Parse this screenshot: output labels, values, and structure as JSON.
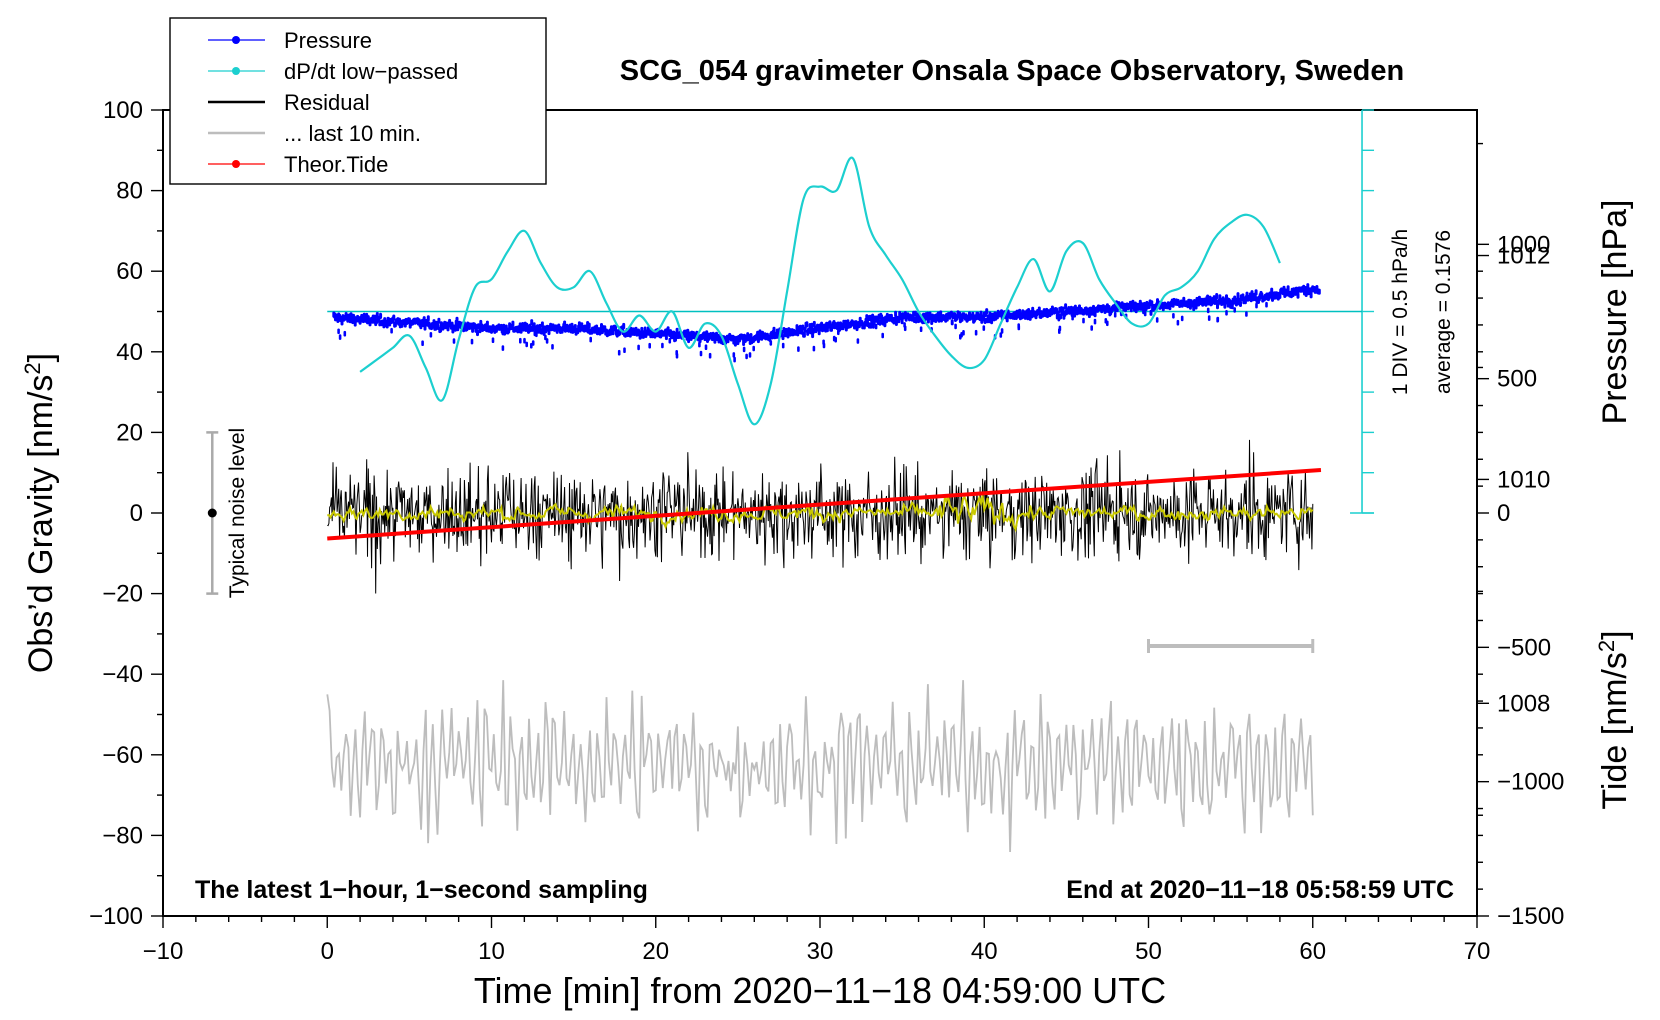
{
  "chart_data": {
    "type": "line",
    "title": "SCG_054 gravimeter Onsala Space Observatory, Sweden",
    "xlabel": "Time [min] from 2020−11−18 04:59:00 UTC",
    "ylabel_main": "Obs’d Gravity [nm/s",
    "ylabel_pressure": "Pressure [hPa]",
    "ylabel_tide": "Tide [nm/s",
    "superscript": "2",
    "xlim": [
      -10,
      70
    ],
    "ylim": [
      -100,
      100
    ],
    "pressure_lim": [
      1006.1,
      1013.3
    ],
    "tide_lim": [
      -1500,
      1500
    ],
    "x_ticks": [
      "−10",
      "0",
      "10",
      "20",
      "30",
      "40",
      "50",
      "60",
      "70"
    ],
    "y_ticks": [
      "100",
      "80",
      "60",
      "40",
      "20",
      "0",
      "−20",
      "−40",
      "−60",
      "−80",
      "−100"
    ],
    "pressure_ticks": [
      "1012",
      "1010",
      "1008"
    ],
    "tide_ticks": [
      "1000",
      "500",
      "0",
      "−500",
      "−1000",
      "−1500"
    ],
    "legend": {
      "position": "top-left",
      "entries": [
        "Pressure",
        "dP/dt low−passed",
        "Residual",
        "... last 10 min.",
        "Theor.Tide"
      ]
    },
    "annotations": {
      "left_bottom": "The latest 1−hour, 1−second sampling",
      "right_bottom": "End at 2020−11−18 05:58:59 UTC",
      "noise_label": "Typical noise level",
      "div_label": "1 DIV = 0.5 hPa/h",
      "avg_label": "average = 0.1576"
    },
    "noise_bar": {
      "x": -7,
      "y_center": 0,
      "y_half": 20
    },
    "ten_min_bar": {
      "x_start": 50,
      "x_end": 60,
      "y": -33
    },
    "dpdt_baseline": 50,
    "series": [
      {
        "name": "Pressure",
        "color": "#0000ff",
        "unit": "hPa",
        "x": [
          0,
          5,
          10,
          15,
          20,
          25,
          30,
          35,
          40,
          45,
          50,
          55,
          60
        ],
        "values": [
          1011.45,
          1011.4,
          1011.35,
          1011.35,
          1011.3,
          1011.25,
          1011.35,
          1011.45,
          1011.45,
          1011.5,
          1011.55,
          1011.6,
          1011.7
        ]
      },
      {
        "name": "dP/dt low-passed",
        "color": "#00c8c8",
        "unit": "nm/s2 axis",
        "x": [
          2,
          3,
          4,
          5,
          6,
          7,
          8,
          9,
          10,
          11,
          12,
          13,
          14,
          15,
          16,
          17,
          18,
          19,
          20,
          21,
          22,
          23,
          24,
          25,
          26,
          27,
          28,
          29,
          30,
          31,
          32,
          33,
          34,
          35,
          36,
          37,
          38,
          39,
          40,
          41,
          42,
          43,
          44,
          45,
          46,
          47,
          48,
          49,
          50,
          51,
          52,
          53,
          54,
          55,
          56,
          57,
          58
        ],
        "values": [
          35,
          38,
          41,
          44,
          36,
          28,
          43,
          56,
          58,
          65,
          70,
          62,
          56,
          56,
          60,
          52,
          45,
          49,
          45,
          50,
          41,
          47,
          44,
          32,
          22,
          32,
          55,
          78,
          81,
          80,
          88,
          71,
          64,
          58,
          50,
          44,
          39,
          36,
          38,
          47,
          56,
          63,
          55,
          65,
          67,
          58,
          52,
          47,
          47,
          54,
          56,
          60,
          68,
          72,
          74,
          71,
          62
        ]
      },
      {
        "name": "Residual",
        "color": "#000000",
        "unit": "nm/s2",
        "x": [
          0,
          60
        ],
        "values": [
          0,
          0
        ],
        "envelope": [
          -27,
          26
        ]
      },
      {
        "name": "... last 10 min.",
        "color": "#bdbdbd",
        "unit": "nm/s2 axis",
        "x": [
          0,
          60
        ],
        "values": [
          -45,
          -75
        ],
        "range": [
          -88,
          -38
        ]
      },
      {
        "name": "Theor.Tide",
        "color": "#ff0000",
        "unit": "nm/s2",
        "x": [
          0,
          60
        ],
        "values": [
          -95,
          160
        ]
      }
    ]
  }
}
